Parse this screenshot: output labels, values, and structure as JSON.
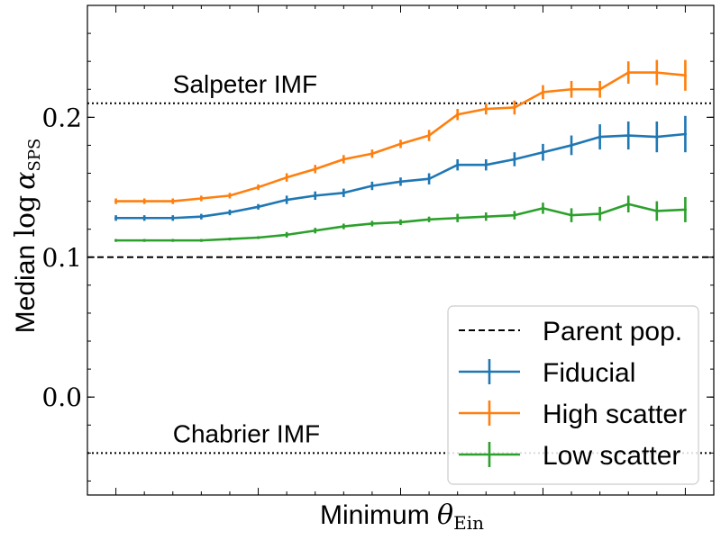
{
  "chart_data": {
    "type": "line",
    "title": "",
    "xlabel_prefix": "Minimum ",
    "xlabel_symbol": "θ",
    "xlabel_sub": "Ein",
    "ylabel_prefix": "Median ",
    "ylabel_math": "log",
    "ylabel_symbol": "α",
    "ylabel_sub": "SPS",
    "ylim": [
      -0.07,
      0.28
    ],
    "yticks": [
      0.0,
      0.1,
      0.2
    ],
    "ytick_labels": [
      "0.0",
      "0.1",
      "0.2"
    ],
    "x": [
      1,
      2,
      3,
      4,
      5,
      6,
      7,
      8,
      9,
      10,
      11,
      12,
      13,
      14,
      15,
      16,
      17,
      18,
      19,
      20,
      21
    ],
    "xlim": [
      0,
      22
    ],
    "grid": false,
    "legend_position": "lower-right",
    "reference_lines": [
      {
        "name": "Salpeter IMF",
        "y": 0.21,
        "style": "dotted",
        "label_x": 3.0
      },
      {
        "name": "Parent pop.",
        "y": 0.1,
        "style": "dashed"
      },
      {
        "name": "Chabrier IMF",
        "y": -0.04,
        "style": "dotted",
        "label_x": 3.0
      }
    ],
    "series": [
      {
        "name": "Fiducial",
        "color": "#1f77b4",
        "values": [
          0.128,
          0.128,
          0.128,
          0.129,
          0.132,
          0.136,
          0.141,
          0.144,
          0.146,
          0.151,
          0.154,
          0.156,
          0.166,
          0.166,
          0.17,
          0.175,
          0.18,
          0.186,
          0.187,
          0.186,
          0.188
        ],
        "errors": [
          0.002,
          0.002,
          0.002,
          0.002,
          0.002,
          0.002,
          0.003,
          0.003,
          0.003,
          0.003,
          0.003,
          0.004,
          0.004,
          0.004,
          0.005,
          0.006,
          0.007,
          0.009,
          0.01,
          0.011,
          0.013
        ]
      },
      {
        "name": "High scatter",
        "color": "#ff7f0e",
        "values": [
          0.14,
          0.14,
          0.14,
          0.142,
          0.144,
          0.15,
          0.157,
          0.163,
          0.17,
          0.174,
          0.181,
          0.187,
          0.202,
          0.206,
          0.207,
          0.218,
          0.22,
          0.22,
          0.232,
          0.232,
          0.23
        ],
        "errors": [
          0.002,
          0.002,
          0.002,
          0.002,
          0.002,
          0.002,
          0.003,
          0.003,
          0.003,
          0.003,
          0.003,
          0.004,
          0.004,
          0.004,
          0.005,
          0.005,
          0.006,
          0.006,
          0.008,
          0.009,
          0.011
        ]
      },
      {
        "name": "Low scatter",
        "color": "#2ca02c",
        "values": [
          0.112,
          0.112,
          0.112,
          0.112,
          0.113,
          0.114,
          0.116,
          0.119,
          0.122,
          0.124,
          0.125,
          0.127,
          0.128,
          0.129,
          0.13,
          0.135,
          0.13,
          0.131,
          0.138,
          0.133,
          0.134
        ],
        "errors": [
          0.001,
          0.001,
          0.001,
          0.001,
          0.001,
          0.001,
          0.002,
          0.002,
          0.002,
          0.002,
          0.002,
          0.002,
          0.003,
          0.003,
          0.003,
          0.004,
          0.005,
          0.005,
          0.006,
          0.007,
          0.009
        ]
      }
    ]
  }
}
